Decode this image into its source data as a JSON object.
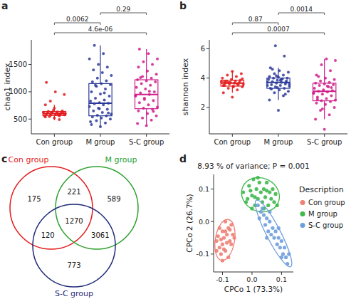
{
  "chart_data": [
    {
      "type": "box",
      "panel_label": "a",
      "y_label": "chao1 index",
      "categories": [
        "Con group",
        "M group",
        "S-C group"
      ],
      "colors": [
        "#e31a1c",
        "#2b3a9a",
        "#d01c8b"
      ],
      "ylim": [
        230,
        1950
      ],
      "yticks": [
        500,
        1000,
        1500
      ],
      "boxes": [
        {
          "min": 480,
          "q1": 565,
          "median": 600,
          "q3": 640,
          "max": 760,
          "points": [
            520,
            540,
            560,
            570,
            580,
            585,
            590,
            595,
            600,
            600,
            605,
            610,
            615,
            620,
            625,
            630,
            640,
            650,
            660,
            560,
            575,
            545,
            610,
            700,
            760,
            490,
            830,
            950,
            1000,
            1170,
            590,
            620
          ]
        },
        {
          "min": 360,
          "q1": 560,
          "median": 790,
          "q3": 1150,
          "max": 1850,
          "points": [
            360,
            400,
            430,
            470,
            500,
            520,
            540,
            560,
            570,
            590,
            620,
            650,
            680,
            700,
            730,
            760,
            780,
            790,
            800,
            830,
            850,
            880,
            920,
            960,
            1000,
            1050,
            1100,
            1130,
            1150,
            1180,
            1200,
            1250,
            1300,
            1350,
            1400,
            1450,
            1500,
            1600,
            1700,
            1850,
            610,
            690,
            450,
            980,
            1120
          ]
        },
        {
          "min": 380,
          "q1": 690,
          "median": 950,
          "q3": 1220,
          "max": 1780,
          "points": [
            380,
            420,
            480,
            520,
            560,
            600,
            650,
            680,
            700,
            720,
            760,
            800,
            840,
            880,
            920,
            950,
            980,
            1000,
            1050,
            1080,
            1120,
            1150,
            1180,
            1200,
            1220,
            1250,
            1280,
            1320,
            1380,
            1450,
            1500,
            1550,
            1600,
            1700,
            1780,
            640,
            860,
            930,
            1010,
            1260
          ]
        }
      ],
      "comparisons": [
        {
          "groups": [
            "M group",
            "S-C group"
          ],
          "label": "0.29"
        },
        {
          "groups": [
            "Con group",
            "M group"
          ],
          "label": "0.0062"
        },
        {
          "groups": [
            "Con group",
            "S-C group"
          ],
          "label": "4.6e-06"
        }
      ]
    },
    {
      "type": "box",
      "panel_label": "b",
      "y_label": "shannon index",
      "categories": [
        "Con group",
        "M group",
        "S-C group"
      ],
      "colors": [
        "#e31a1c",
        "#2b3a9a",
        "#d01c8b"
      ],
      "ylim": [
        0.2,
        6.6
      ],
      "yticks": [
        2,
        4,
        6
      ],
      "boxes": [
        {
          "min": 3.0,
          "q1": 3.45,
          "median": 3.65,
          "q3": 3.85,
          "max": 4.45,
          "points": [
            2.7,
            3.0,
            3.2,
            3.3,
            3.4,
            3.45,
            3.5,
            3.55,
            3.6,
            3.6,
            3.65,
            3.65,
            3.7,
            3.7,
            3.75,
            3.8,
            3.8,
            3.85,
            3.9,
            4.0,
            4.1,
            4.2,
            4.3,
            4.45,
            3.5,
            3.6,
            3.7,
            3.95,
            3.4,
            3.75
          ]
        },
        {
          "min": 2.5,
          "q1": 3.3,
          "median": 3.7,
          "q3": 4.0,
          "max": 4.7,
          "points": [
            1.8,
            2.5,
            2.8,
            3.0,
            3.1,
            3.2,
            3.3,
            3.3,
            3.4,
            3.45,
            3.5,
            3.55,
            3.6,
            3.65,
            3.7,
            3.7,
            3.75,
            3.8,
            3.85,
            3.9,
            3.95,
            4.0,
            4.0,
            4.05,
            4.1,
            4.2,
            4.3,
            4.4,
            4.5,
            4.7,
            5.5,
            6.2,
            3.6,
            3.85,
            3.25,
            2.9,
            4.15,
            3.5,
            3.9,
            4.6,
            3.7,
            3.35
          ]
        },
        {
          "min": 1.2,
          "q1": 2.45,
          "median": 3.1,
          "q3": 3.65,
          "max": 5.3,
          "points": [
            0.5,
            1.2,
            1.5,
            1.8,
            2.0,
            2.2,
            2.3,
            2.4,
            2.45,
            2.5,
            2.6,
            2.7,
            2.8,
            2.9,
            3.0,
            3.05,
            3.1,
            3.15,
            3.2,
            3.3,
            3.4,
            3.5,
            3.55,
            3.6,
            3.65,
            3.7,
            3.8,
            3.9,
            4.0,
            4.2,
            4.5,
            4.9,
            5.2,
            5.3,
            2.55,
            3.35,
            1.9,
            2.95,
            3.45,
            4.1
          ]
        }
      ],
      "comparisons": [
        {
          "groups": [
            "M group",
            "S-C group"
          ],
          "label": "0.0014"
        },
        {
          "groups": [
            "Con group",
            "M group"
          ],
          "label": "0.87"
        },
        {
          "groups": [
            "Con group",
            "S-C group"
          ],
          "label": "0.0007"
        }
      ]
    },
    {
      "type": "venn",
      "panel_label": "c",
      "sets": [
        {
          "name": "Con group",
          "color": "#e31a1c"
        },
        {
          "name": "M group",
          "color": "#2ca02c"
        },
        {
          "name": "S-C group",
          "color": "#1f2a7a"
        }
      ],
      "regions": [
        {
          "sets": [
            "Con group"
          ],
          "value": 175
        },
        {
          "sets": [
            "M group"
          ],
          "value": 589
        },
        {
          "sets": [
            "S-C group"
          ],
          "value": 773
        },
        {
          "sets": [
            "Con group",
            "M group"
          ],
          "value": 221
        },
        {
          "sets": [
            "Con group",
            "S-C group"
          ],
          "value": 120
        },
        {
          "sets": [
            "M group",
            "S-C group"
          ],
          "value": 3061
        },
        {
          "sets": [
            "Con group",
            "M group",
            "S-C group"
          ],
          "value": 1270
        }
      ]
    },
    {
      "type": "scatter",
      "panel_label": "d",
      "title": "8.93 % of variance; P = 0.001",
      "x_label": "CPCo 1 (73.3%)",
      "y_label": "CPCo 2 (26.7%)",
      "legend_title": "Description",
      "legend": "right",
      "xlim": [
        -0.13,
        0.14
      ],
      "ylim": [
        -0.155,
        0.145
      ],
      "xticks": [
        -0.1,
        {
          "value": 0,
          "label": "0.0"
        },
        0.1
      ],
      "yticks": [
        -0.1,
        {
          "value": 0,
          "label": "0.0"
        },
        0.1
      ],
      "series": [
        {
          "name": "Con group",
          "color": "#f07f74",
          "x": [
            -0.12,
            -0.11,
            -0.1,
            -0.095,
            -0.09,
            -0.085,
            -0.08,
            -0.075,
            -0.07,
            -0.105,
            -0.115,
            -0.1,
            -0.09,
            -0.08,
            -0.065,
            -0.11,
            -0.095,
            -0.085,
            -0.075,
            -0.12,
            -0.1,
            -0.07,
            -0.09,
            -0.06,
            -0.105
          ],
          "values": [
            -0.06,
            -0.08,
            -0.03,
            -0.05,
            -0.09,
            -0.04,
            -0.02,
            -0.06,
            -0.01,
            -0.1,
            -0.045,
            -0.07,
            -0.03,
            -0.11,
            -0.04,
            -0.02,
            -0.085,
            -0.065,
            -0.025,
            -0.09,
            -0.12,
            -0.07,
            0.0,
            -0.05,
            -0.055
          ]
        },
        {
          "name": "M group",
          "color": "#3db84a",
          "x": [
            -0.03,
            -0.02,
            -0.01,
            0.0,
            0.005,
            0.01,
            0.015,
            0.02,
            0.025,
            0.03,
            0.035,
            0.04,
            0.045,
            0.05,
            0.055,
            0.06,
            0.065,
            0.07,
            0.075,
            0.08,
            0.0,
            0.02,
            -0.005,
            0.04,
            0.085,
            0.01,
            0.05,
            -0.015
          ],
          "values": [
            0.09,
            0.06,
            0.11,
            0.08,
            0.13,
            0.05,
            0.1,
            0.07,
            0.12,
            0.09,
            0.06,
            0.1,
            0.075,
            0.12,
            0.05,
            0.09,
            0.07,
            0.1,
            0.06,
            0.085,
            0.04,
            0.135,
            0.095,
            0.04,
            0.05,
            0.075,
            0.095,
            0.07
          ]
        },
        {
          "name": "S-C group",
          "color": "#6f9fdb",
          "x": [
            0.02,
            0.03,
            0.025,
            0.04,
            0.045,
            0.05,
            0.055,
            0.06,
            0.065,
            0.07,
            0.075,
            0.08,
            0.085,
            0.09,
            0.095,
            0.1,
            0.105,
            0.11,
            0.115,
            0.12,
            0.035,
            0.06,
            0.09,
            0.1,
            0.05,
            0.125
          ],
          "values": [
            0.05,
            0.03,
            0.01,
            0.02,
            -0.01,
            0.01,
            -0.03,
            0.0,
            -0.04,
            -0.02,
            -0.05,
            -0.03,
            -0.07,
            -0.05,
            -0.08,
            -0.06,
            -0.1,
            -0.08,
            -0.11,
            -0.13,
            0.04,
            0.03,
            -0.02,
            -0.11,
            -0.05,
            -0.1
          ]
        }
      ]
    }
  ]
}
